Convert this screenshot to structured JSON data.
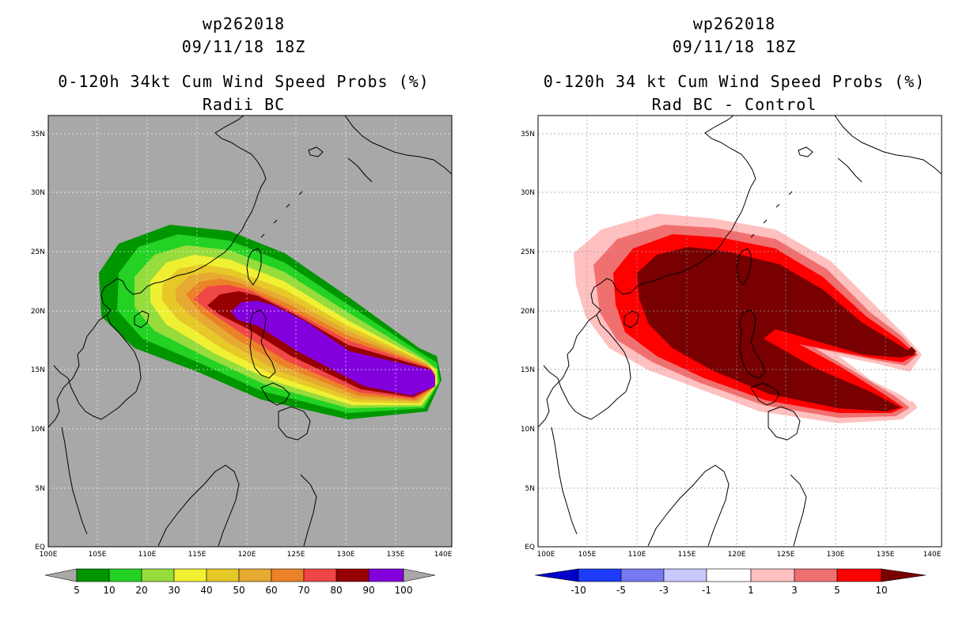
{
  "panels": [
    {
      "id": "left",
      "storm_id": "wp262018",
      "date": "09/11/18 18Z",
      "title": "0-120h 34kt Cum Wind Speed Probs (%)",
      "subtitle": "Radii BC",
      "background": "#a8a8a8",
      "lon_labels": [
        "100E",
        "105E",
        "110E",
        "115E",
        "120E",
        "125E",
        "130E",
        "135E",
        "140E"
      ],
      "lat_labels": [
        "EQ",
        "5N",
        "10N",
        "15N",
        "20N",
        "25N",
        "30N",
        "35N"
      ],
      "colorbar": {
        "labels": [
          "5",
          "10",
          "20",
          "30",
          "40",
          "50",
          "60",
          "70",
          "80",
          "90",
          "100"
        ],
        "colors": [
          "#009600",
          "#23d223",
          "#96dc3c",
          "#f0f032",
          "#e6c828",
          "#e6aa32",
          "#eb8228",
          "#f04646",
          "#960000",
          "#8200dc"
        ]
      }
    },
    {
      "id": "right",
      "storm_id": "wp262018",
      "date": "09/11/18 18Z",
      "title": "0-120h 34 kt Cum Wind Speed Probs (%)",
      "subtitle": "Rad BC - Control",
      "background": "#ffffff",
      "lon_labels": [
        "100E",
        "105E",
        "110E",
        "115E",
        "120E",
        "125E",
        "130E",
        "135E",
        "140E"
      ],
      "lat_labels": [
        "EQ",
        "5N",
        "10N",
        "15N",
        "20N",
        "25N",
        "30N",
        "35N"
      ],
      "colorbar": {
        "labels": [
          "-10",
          "-5",
          "-3",
          "-1",
          "1",
          "3",
          "5",
          "10"
        ],
        "colors": [
          "#0000c8",
          "#1e3cff",
          "#7878f0",
          "#c8c8ff",
          "#ffffff",
          "#ffc0c0",
          "#f07070",
          "#ff0000",
          "#780000"
        ]
      }
    }
  ]
}
